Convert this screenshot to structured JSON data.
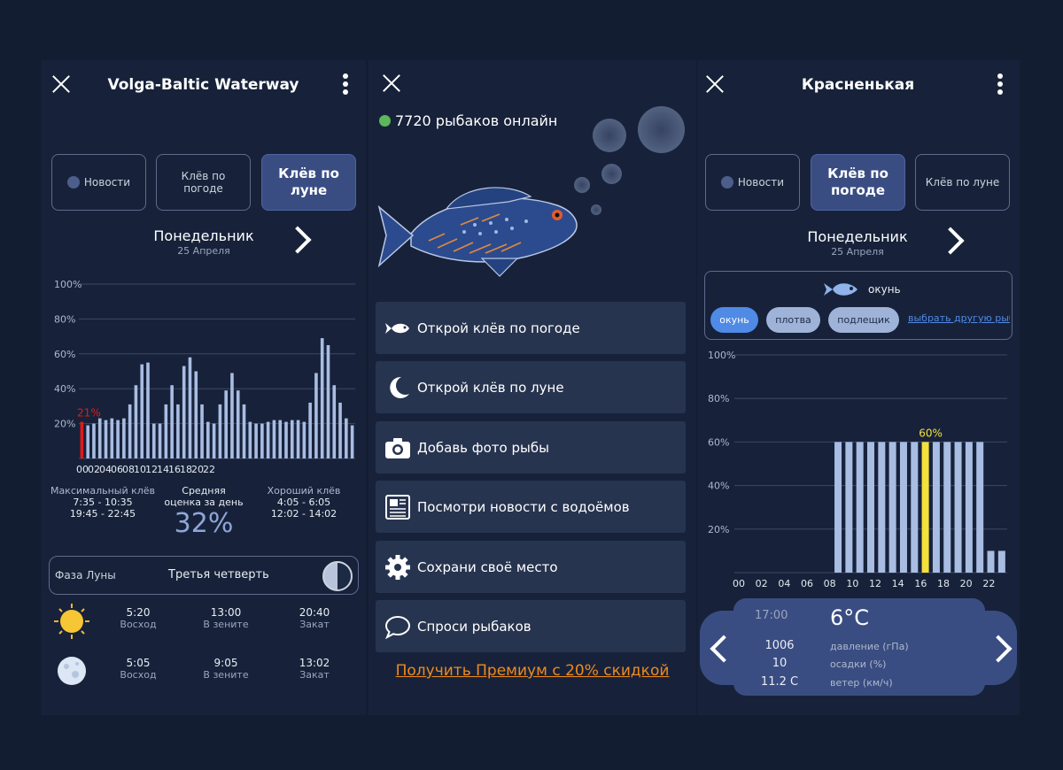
{
  "left": {
    "title": "Volga-Baltic Waterway",
    "tabs": [
      {
        "label": "Новости",
        "active": false,
        "dot": true
      },
      {
        "label": "Клёв по погоде",
        "active": false,
        "dot": false
      },
      {
        "label": "Клёв по луне",
        "active": true,
        "dot": false
      }
    ],
    "day": "Понедельник",
    "date": "25 Апреля",
    "current_marker": "21%",
    "stats": {
      "max_label": "Максимальный клёв",
      "max_values": [
        "7:35 - 10:35",
        "19:45 - 22:45"
      ],
      "avg_label": "Средняя оценка за день",
      "avg_value": "32%",
      "good_label": "Хороший клёв",
      "good_values": [
        "4:05 - 6:05",
        "12:02 - 14:02"
      ]
    },
    "moon": {
      "label": "Фаза Луны",
      "phase": "Третья четверть"
    },
    "sun": {
      "rise": "5:20",
      "rise_label": "Восход",
      "zenith": "13:00",
      "zenith_label": "В зените",
      "set": "20:40",
      "set_label": "Закат"
    },
    "moon_times": {
      "rise": "5:05",
      "rise_label": "Восход",
      "zenith": "9:05",
      "zenith_label": "В зените",
      "set": "13:02",
      "set_label": "Закат"
    }
  },
  "middle": {
    "online_count": "7720 рыбаков онлайн",
    "menu": [
      {
        "label": "Открой клёв по погоде",
        "icon": "fish-icon"
      },
      {
        "label": "Открой клёв по луне",
        "icon": "moon-icon"
      },
      {
        "label": "Добавь фото рыбы",
        "icon": "camera-icon"
      },
      {
        "label": "Посмотри новости с водоёмов",
        "icon": "newspaper-icon"
      },
      {
        "label": "Сохрани своё место",
        "icon": "gear-icon"
      },
      {
        "label": "Спроси рыбаков",
        "icon": "chat-bubble-icon"
      }
    ],
    "promo": "Получить Премиум с 20% скидкой"
  },
  "right": {
    "title": "Красненькая",
    "tabs": [
      {
        "label": "Новости",
        "active": false,
        "dot": true
      },
      {
        "label": "Клёв по погоде",
        "active": true,
        "dot": false
      },
      {
        "label": "Клёв по луне",
        "active": false,
        "dot": false
      }
    ],
    "day": "Понедельник",
    "date": "25 Апреля",
    "fish_name": "окунь",
    "fish_pills": [
      "окунь",
      "плотва",
      "подлещик"
    ],
    "choose_other": "выбрать другую рыбу",
    "highlight_label": "60%",
    "weather": {
      "time": "17:00",
      "temp": "6°C",
      "pressure": "1006",
      "pressure_label": "давление (гПа)",
      "precip": "10",
      "precip_label": "осадки (%)",
      "wind": "11.2 С",
      "wind_label": "ветер (км/ч)"
    }
  },
  "chart_data": [
    {
      "type": "bar",
      "ylim": [
        0,
        100
      ],
      "yticks": [
        "100%",
        "80%",
        "60%",
        "40%",
        "20%"
      ],
      "xticks": [
        "00",
        "02",
        "04",
        "06",
        "08",
        "10",
        "12",
        "14",
        "16",
        "18",
        "20",
        "22"
      ],
      "values": [
        21,
        19,
        20,
        23,
        22,
        23,
        22,
        23,
        31,
        42,
        54,
        55,
        20,
        20,
        31,
        42,
        31,
        53,
        58,
        50,
        31,
        21,
        20,
        31,
        39,
        49,
        39,
        31,
        21,
        20,
        20,
        21,
        22,
        22,
        21,
        22,
        22,
        21,
        32,
        49,
        69,
        65,
        42,
        32,
        23,
        19
      ],
      "highlight_index": 0,
      "highlight_value": 21
    },
    {
      "type": "bar",
      "ylim": [
        0,
        100
      ],
      "yticks": [
        "100%",
        "80%",
        "60%",
        "40%",
        "20%"
      ],
      "xticks": [
        "00",
        "02",
        "04",
        "06",
        "08",
        "10",
        "12",
        "14",
        "16",
        "18",
        "20",
        "22"
      ],
      "values": [
        0,
        0,
        0,
        0,
        0,
        0,
        0,
        0,
        0,
        60,
        60,
        60,
        60,
        60,
        60,
        60,
        60,
        60,
        60,
        60,
        60,
        60,
        60,
        10,
        10
      ],
      "highlight_index": 17,
      "highlight_value": 60
    }
  ]
}
